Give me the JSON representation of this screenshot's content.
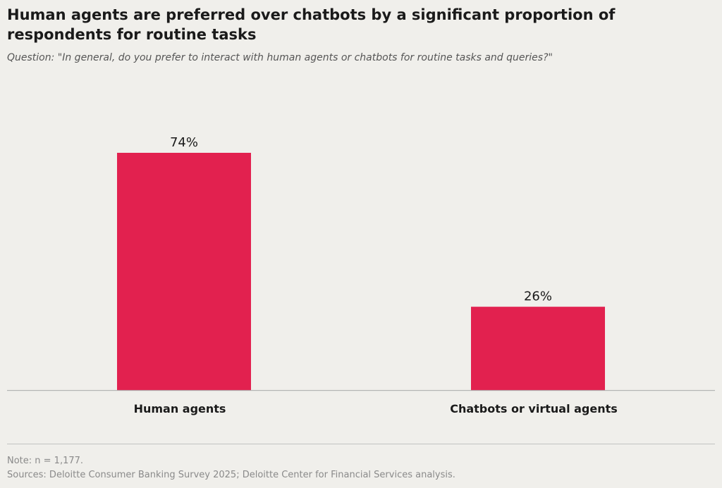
{
  "header": {
    "title": "Human agents are preferred over chatbots by a significant proportion of respondents for routine tasks",
    "subtitle": "Question: \"In general, do you prefer to interact with human agents or chatbots for routine tasks and queries?\""
  },
  "footer": {
    "note": "Note: n = 1,177.",
    "sources": "Sources: Deloitte Consumer Banking Survey 2025; Deloitte Center for Financial Services analysis."
  },
  "colors": {
    "bar": "#e2214f",
    "background": "#f0efeb",
    "axis": "#b5b5b5"
  },
  "chart_data": {
    "type": "bar",
    "categories": [
      "Human agents",
      "Chatbots or virtual agents"
    ],
    "values": [
      74,
      26
    ],
    "data_labels": [
      "74%",
      "26%"
    ],
    "ylim": [
      0,
      100
    ],
    "grid": false,
    "legend": "none"
  }
}
